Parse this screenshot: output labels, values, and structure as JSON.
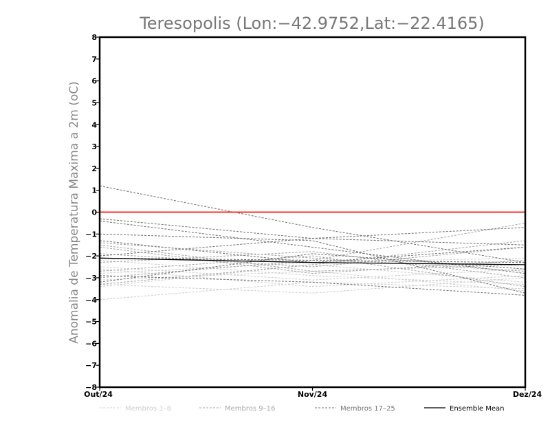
{
  "chart_data": {
    "type": "line",
    "title": "Teresopolis (Lon:−42.9752,Lat:−22.4165)",
    "ylabel": "Anomalia de Temperatura Maxima a 2m (oC)",
    "xlabel": "",
    "categories": [
      "Out/24",
      "Nov/24",
      "Dez/24"
    ],
    "ylim": [
      -8,
      8
    ],
    "yticks": [
      "8",
      "7",
      "6",
      "5",
      "4",
      "3",
      "2",
      "1",
      "0",
      "−1",
      "−2",
      "−3",
      "−4",
      "−5",
      "−6",
      "−7",
      "−8"
    ],
    "reference_line": {
      "value": 0,
      "color": "#ff3030"
    },
    "legend": [
      {
        "label": "Membros 1–8",
        "color": "#cfcfcf",
        "dash": true
      },
      {
        "label": "Membros 9–16",
        "color": "#a8a8a8",
        "dash": true
      },
      {
        "label": "Membros 17–25",
        "color": "#777777",
        "dash": true
      },
      {
        "label": "Ensemble Mean",
        "color": "#000000",
        "dash": false
      }
    ],
    "series": [
      {
        "name": "m1",
        "group": 0,
        "values": [
          -4.0,
          -3.2,
          -3.5
        ]
      },
      {
        "name": "m2",
        "group": 0,
        "values": [
          -3.3,
          -3.7,
          -3.0
        ]
      },
      {
        "name": "m3",
        "group": 0,
        "values": [
          -3.1,
          -2.7,
          -3.6
        ]
      },
      {
        "name": "m4",
        "group": 0,
        "values": [
          -2.5,
          -3.1,
          -2.6
        ]
      },
      {
        "name": "m5",
        "group": 0,
        "values": [
          -3.4,
          -2.4,
          -3.2
        ]
      },
      {
        "name": "m6",
        "group": 0,
        "values": [
          -2.2,
          -2.9,
          -3.3
        ]
      },
      {
        "name": "m7",
        "group": 0,
        "values": [
          -2.8,
          -2.3,
          -2.1
        ]
      },
      {
        "name": "m8",
        "group": 0,
        "values": [
          -2.6,
          -3.4,
          -2.9
        ]
      },
      {
        "name": "m9",
        "group": 1,
        "values": [
          -1.4,
          -2.1,
          -2.7
        ]
      },
      {
        "name": "m10",
        "group": 1,
        "values": [
          -1.9,
          -2.5,
          -1.6
        ]
      },
      {
        "name": "m11",
        "group": 1,
        "values": [
          -2.3,
          -1.8,
          -3.0
        ]
      },
      {
        "name": "m12",
        "group": 1,
        "values": [
          -3.0,
          -2.2,
          -0.5
        ]
      },
      {
        "name": "m13",
        "group": 1,
        "values": [
          -1.5,
          -2.7,
          -2.4
        ]
      },
      {
        "name": "m14",
        "group": 1,
        "values": [
          -2.7,
          -2.0,
          -3.4
        ]
      },
      {
        "name": "m15",
        "group": 1,
        "values": [
          -3.3,
          -2.4,
          -1.3
        ]
      },
      {
        "name": "m16",
        "group": 1,
        "values": [
          -1.6,
          -2.8,
          -2.2
        ]
      },
      {
        "name": "m17",
        "group": 2,
        "values": [
          1.2,
          -0.7,
          -2.3
        ]
      },
      {
        "name": "m18",
        "group": 2,
        "values": [
          -0.3,
          -1.2,
          -1.5
        ]
      },
      {
        "name": "m19",
        "group": 2,
        "values": [
          -0.4,
          -1.6,
          -2.8
        ]
      },
      {
        "name": "m20",
        "group": 2,
        "values": [
          -1.0,
          -1.3,
          -3.7
        ]
      },
      {
        "name": "m21",
        "group": 2,
        "values": [
          -2.0,
          -1.2,
          -0.7
        ]
      },
      {
        "name": "m22",
        "group": 2,
        "values": [
          -2.9,
          -3.2,
          -3.8
        ]
      },
      {
        "name": "m23",
        "group": 2,
        "values": [
          -1.3,
          -2.3,
          -1.6
        ]
      },
      {
        "name": "m24",
        "group": 2,
        "values": [
          -3.2,
          -1.9,
          -2.6
        ]
      },
      {
        "name": "m25",
        "group": 2,
        "values": [
          -2.1,
          -2.2,
          -2.3
        ]
      },
      {
        "name": "Ensemble Mean",
        "group": 3,
        "values": [
          -2.1,
          -2.3,
          -2.4
        ]
      }
    ]
  }
}
